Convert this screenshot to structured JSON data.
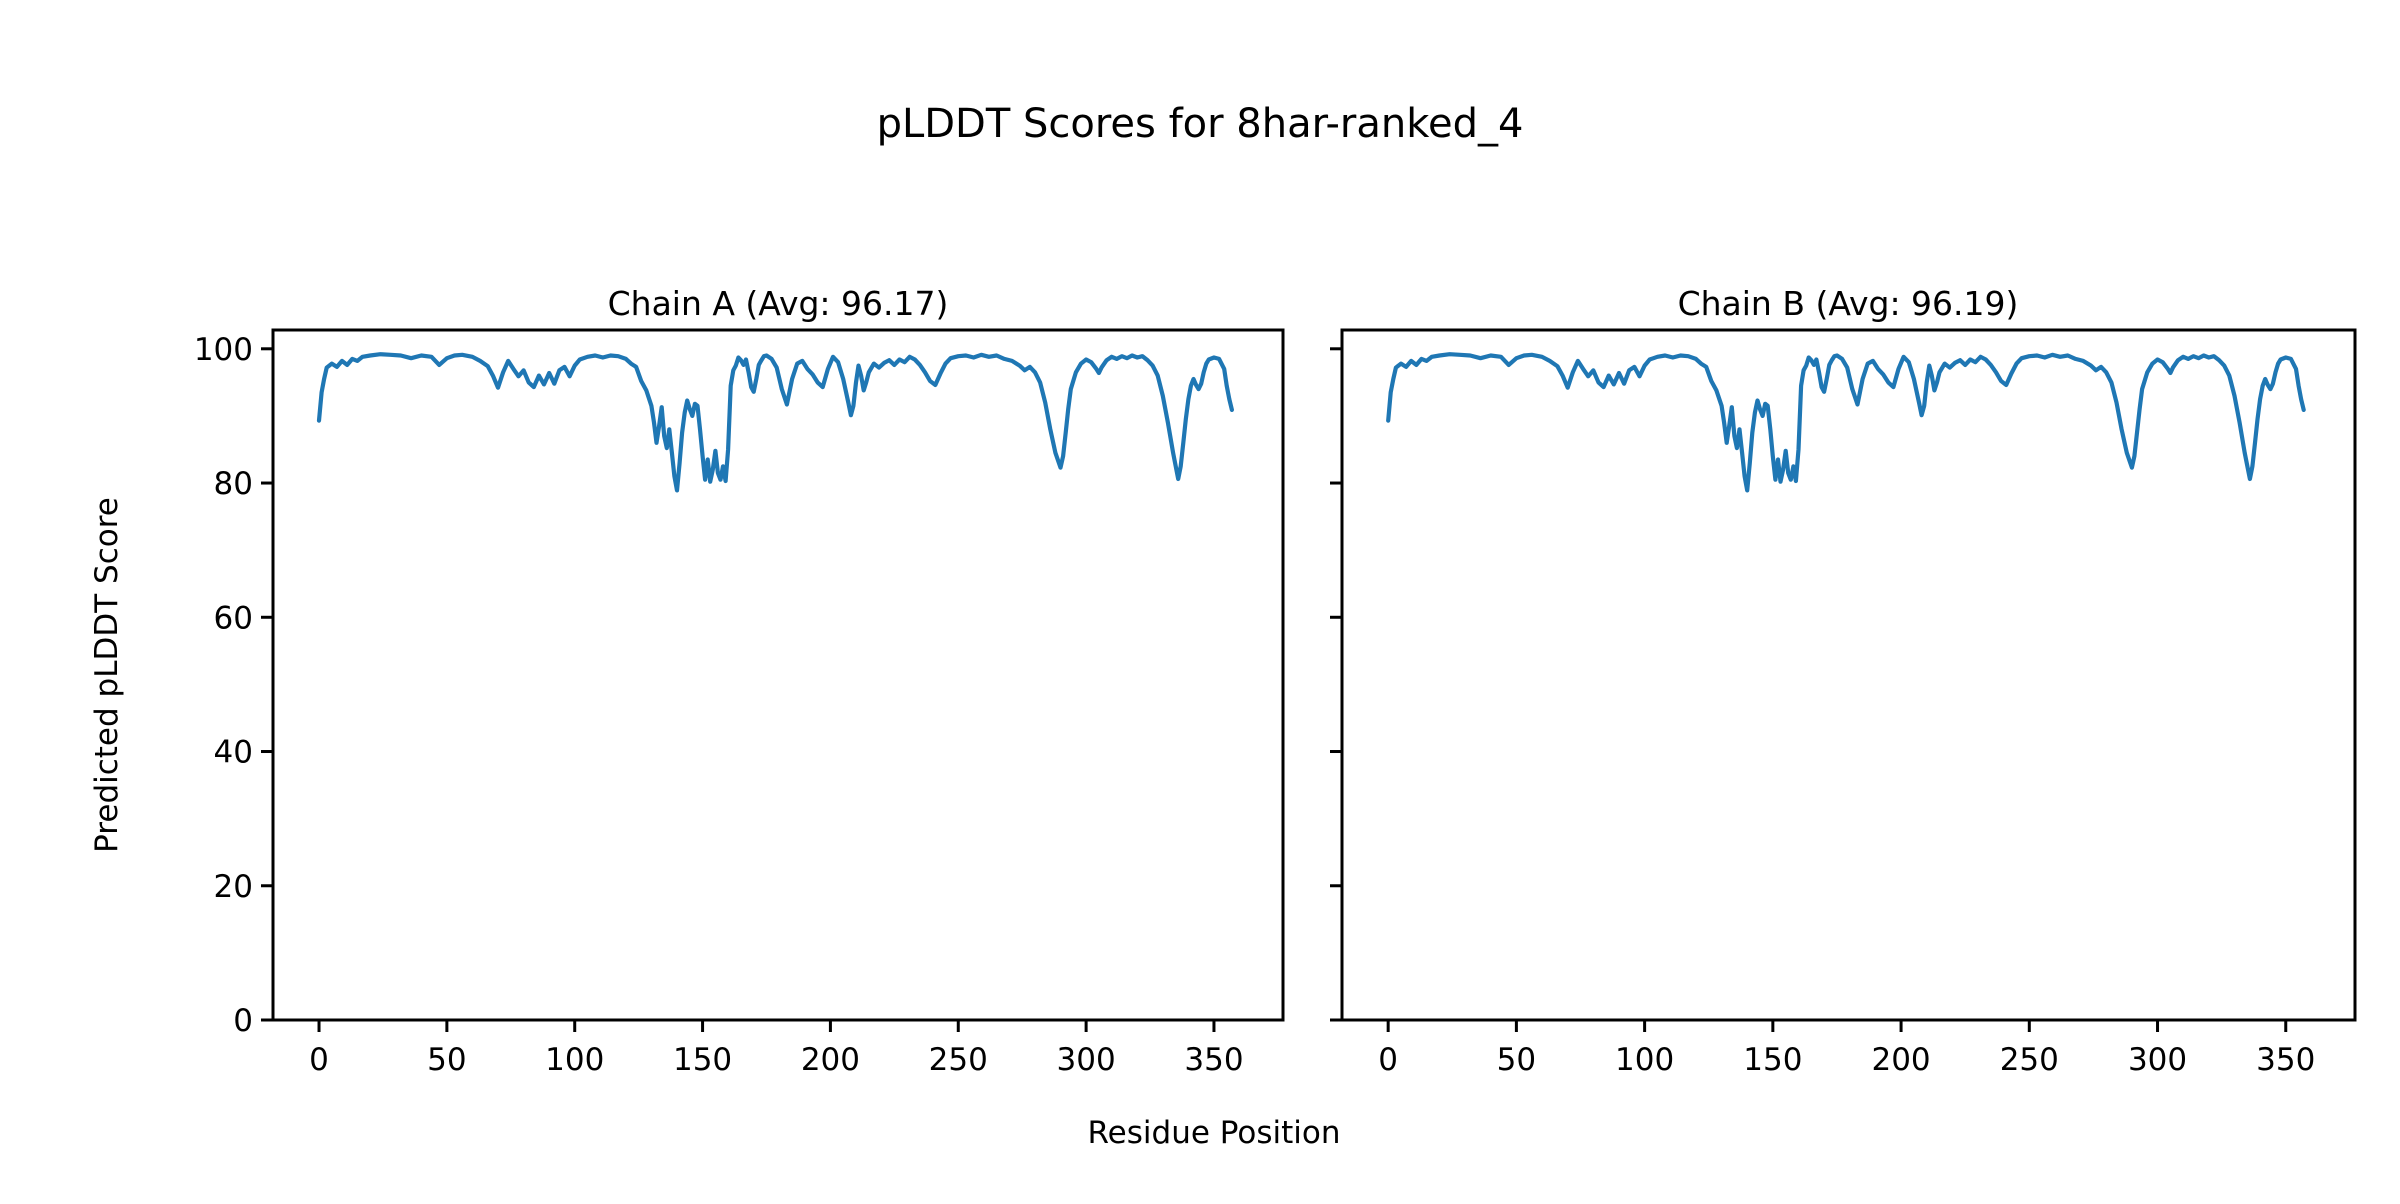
{
  "figure": {
    "title": "pLDDT Scores for 8har-ranked_4",
    "background_color": "#ffffff",
    "text_color": "#000000"
  },
  "shared_axes": {
    "xlabel": "Residue Position",
    "ylabel": "Predicted pLDDT Score",
    "x_ticks": [
      0,
      50,
      100,
      150,
      200,
      250,
      300,
      350
    ],
    "y_ticks": [
      0,
      20,
      40,
      60,
      80,
      100
    ],
    "xlim": [
      -18,
      377
    ],
    "ylim": [
      0,
      100
    ],
    "grid": false,
    "legend": "none"
  },
  "chart_data": [
    {
      "type": "line",
      "title": "Chain A (Avg: 96.17)",
      "series_name": "Chain A",
      "avg": 96.17,
      "line_color": "#1f77b4",
      "xlabel": "Residue Position",
      "ylabel": "Predicted pLDDT Score",
      "xlim": [
        -18,
        377
      ],
      "ylim": [
        0,
        100
      ],
      "x": [
        0,
        1,
        2,
        3,
        5,
        7,
        9,
        11,
        13,
        15,
        17,
        20,
        24,
        28,
        32,
        36,
        40,
        44,
        47,
        50,
        53,
        56,
        60,
        63,
        66,
        68,
        70,
        72,
        74,
        76,
        78,
        80,
        82,
        84,
        86,
        88,
        90,
        92,
        94,
        96,
        98,
        100,
        102,
        105,
        108,
        111,
        114,
        117,
        120,
        122,
        124,
        126,
        128,
        130,
        131,
        132,
        133,
        134,
        135,
        136,
        137,
        138,
        139,
        140,
        141,
        142,
        143,
        144,
        145,
        146,
        147,
        148,
        149,
        150,
        151,
        152,
        153,
        154,
        155,
        156,
        157,
        158,
        159,
        160,
        161,
        162,
        163,
        164,
        165,
        166,
        167,
        168,
        169,
        170,
        171,
        172,
        173,
        174,
        175,
        177,
        179,
        181,
        183,
        185,
        187,
        189,
        191,
        193,
        195,
        197,
        199,
        201,
        203,
        205,
        207,
        208,
        209,
        210,
        211,
        212,
        213,
        214,
        215,
        217,
        219,
        221,
        223,
        225,
        227,
        229,
        231,
        233,
        235,
        237,
        239,
        241,
        243,
        245,
        247,
        250,
        253,
        256,
        259,
        262,
        265,
        268,
        271,
        274,
        276,
        278,
        280,
        282,
        284,
        286,
        288,
        290,
        291,
        292,
        293,
        294,
        296,
        298,
        300,
        302,
        304,
        305,
        306,
        308,
        310,
        312,
        314,
        316,
        318,
        320,
        322,
        324,
        326,
        328,
        330,
        332,
        334,
        336,
        337,
        338,
        339,
        340,
        341,
        342,
        343,
        344,
        345,
        346,
        347,
        348,
        350,
        352,
        354,
        355,
        356,
        357
      ],
      "y": [
        89.3,
        93.5,
        95.5,
        97.2,
        97.8,
        97.3,
        98.2,
        97.6,
        98.5,
        98.2,
        98.8,
        99.0,
        99.2,
        99.1,
        99.0,
        98.6,
        99.0,
        98.8,
        97.6,
        98.6,
        99.0,
        99.1,
        98.8,
        98.2,
        97.4,
        96.0,
        94.2,
        96.5,
        98.2,
        97.0,
        95.9,
        96.8,
        95.0,
        94.3,
        96.0,
        94.7,
        96.4,
        94.8,
        96.8,
        97.3,
        95.9,
        97.5,
        98.4,
        98.8,
        99.0,
        98.7,
        99.0,
        98.9,
        98.5,
        97.8,
        97.3,
        95.2,
        93.8,
        91.5,
        89.0,
        86.0,
        88.5,
        91.3,
        87.0,
        85.2,
        88.0,
        84.5,
        81.0,
        78.9,
        83.0,
        87.5,
        90.5,
        92.3,
        91.0,
        90.0,
        91.8,
        91.5,
        88.0,
        84.0,
        80.5,
        83.5,
        80.2,
        82.0,
        84.8,
        81.5,
        80.5,
        82.5,
        80.3,
        85.0,
        94.5,
        96.8,
        97.5,
        98.7,
        98.3,
        97.6,
        98.4,
        96.5,
        94.3,
        93.6,
        95.5,
        97.6,
        98.3,
        98.9,
        99.0,
        98.5,
        97.2,
        94.0,
        91.7,
        95.5,
        97.8,
        98.2,
        97.0,
        96.2,
        95.0,
        94.3,
        97.0,
        98.8,
        98.0,
        95.5,
        92.0,
        90.1,
        91.5,
        95.0,
        97.5,
        96.0,
        93.8,
        95.0,
        96.5,
        97.8,
        97.2,
        97.9,
        98.3,
        97.6,
        98.4,
        98.0,
        98.8,
        98.4,
        97.6,
        96.5,
        95.2,
        94.6,
        96.3,
        97.8,
        98.6,
        98.9,
        99.0,
        98.7,
        99.1,
        98.8,
        99.0,
        98.5,
        98.2,
        97.5,
        96.8,
        97.3,
        96.5,
        95.0,
        92.0,
        88.0,
        84.5,
        82.3,
        84.0,
        87.5,
        91.0,
        94.0,
        96.5,
        97.8,
        98.4,
        98.0,
        97.0,
        96.4,
        97.2,
        98.3,
        98.8,
        98.5,
        98.9,
        98.6,
        99.0,
        98.7,
        98.9,
        98.3,
        97.5,
        96.0,
        93.0,
        89.0,
        84.5,
        80.6,
        82.5,
        86.0,
        89.5,
        92.5,
        94.5,
        95.5,
        94.6,
        94.0,
        94.8,
        96.5,
        97.8,
        98.4,
        98.7,
        98.5,
        97.0,
        94.5,
        92.5,
        90.9
      ]
    },
    {
      "type": "line",
      "title": "Chain B (Avg: 96.19)",
      "series_name": "Chain B",
      "avg": 96.19,
      "line_color": "#1f77b4",
      "xlabel": "Residue Position",
      "ylabel": "Predicted pLDDT Score",
      "xlim": [
        -18,
        377
      ],
      "ylim": [
        0,
        100
      ],
      "x": [
        0,
        1,
        2,
        3,
        5,
        7,
        9,
        11,
        13,
        15,
        17,
        20,
        24,
        28,
        32,
        36,
        40,
        44,
        47,
        50,
        53,
        56,
        60,
        63,
        66,
        68,
        70,
        72,
        74,
        76,
        78,
        80,
        82,
        84,
        86,
        88,
        90,
        92,
        94,
        96,
        98,
        100,
        102,
        105,
        108,
        111,
        114,
        117,
        120,
        122,
        124,
        126,
        128,
        130,
        131,
        132,
        133,
        134,
        135,
        136,
        137,
        138,
        139,
        140,
        141,
        142,
        143,
        144,
        145,
        146,
        147,
        148,
        149,
        150,
        151,
        152,
        153,
        154,
        155,
        156,
        157,
        158,
        159,
        160,
        161,
        162,
        163,
        164,
        165,
        166,
        167,
        168,
        169,
        170,
        171,
        172,
        173,
        174,
        175,
        177,
        179,
        181,
        183,
        185,
        187,
        189,
        191,
        193,
        195,
        197,
        199,
        201,
        203,
        205,
        207,
        208,
        209,
        210,
        211,
        212,
        213,
        214,
        215,
        217,
        219,
        221,
        223,
        225,
        227,
        229,
        231,
        233,
        235,
        237,
        239,
        241,
        243,
        245,
        247,
        250,
        253,
        256,
        259,
        262,
        265,
        268,
        271,
        274,
        276,
        278,
        280,
        282,
        284,
        286,
        288,
        290,
        291,
        292,
        293,
        294,
        296,
        298,
        300,
        302,
        304,
        305,
        306,
        308,
        310,
        312,
        314,
        316,
        318,
        320,
        322,
        324,
        326,
        328,
        330,
        332,
        334,
        336,
        337,
        338,
        339,
        340,
        341,
        342,
        343,
        344,
        345,
        346,
        347,
        348,
        350,
        352,
        354,
        355,
        356,
        357
      ],
      "y": [
        89.3,
        93.5,
        95.5,
        97.2,
        97.8,
        97.3,
        98.2,
        97.6,
        98.5,
        98.2,
        98.8,
        99.0,
        99.2,
        99.1,
        99.0,
        98.6,
        99.0,
        98.8,
        97.6,
        98.6,
        99.0,
        99.1,
        98.8,
        98.2,
        97.4,
        96.0,
        94.2,
        96.5,
        98.2,
        97.0,
        95.9,
        96.8,
        95.0,
        94.3,
        96.0,
        94.7,
        96.4,
        94.8,
        96.8,
        97.3,
        95.9,
        97.5,
        98.4,
        98.8,
        99.0,
        98.7,
        99.0,
        98.9,
        98.5,
        97.8,
        97.3,
        95.2,
        93.8,
        91.5,
        89.0,
        86.0,
        88.5,
        91.3,
        87.0,
        85.2,
        88.0,
        84.5,
        81.0,
        78.9,
        83.0,
        87.5,
        90.5,
        92.3,
        91.0,
        90.0,
        91.8,
        91.5,
        88.0,
        84.0,
        80.5,
        83.5,
        80.2,
        82.0,
        84.8,
        81.5,
        80.5,
        82.5,
        80.3,
        85.0,
        94.5,
        96.8,
        97.5,
        98.7,
        98.3,
        97.6,
        98.4,
        96.5,
        94.3,
        93.6,
        95.5,
        97.6,
        98.3,
        98.9,
        99.0,
        98.5,
        97.2,
        94.0,
        91.7,
        95.5,
        97.8,
        98.2,
        97.0,
        96.2,
        95.0,
        94.3,
        97.0,
        98.8,
        98.0,
        95.5,
        92.0,
        90.1,
        91.5,
        95.0,
        97.5,
        96.0,
        93.8,
        95.0,
        96.5,
        97.8,
        97.2,
        97.9,
        98.3,
        97.6,
        98.4,
        98.0,
        98.8,
        98.4,
        97.6,
        96.5,
        95.2,
        94.6,
        96.3,
        97.8,
        98.6,
        98.9,
        99.0,
        98.7,
        99.1,
        98.8,
        99.0,
        98.5,
        98.2,
        97.5,
        96.8,
        97.3,
        96.5,
        95.0,
        92.0,
        88.0,
        84.5,
        82.3,
        84.0,
        87.5,
        91.0,
        94.0,
        96.5,
        97.8,
        98.4,
        98.0,
        97.0,
        96.4,
        97.2,
        98.3,
        98.8,
        98.5,
        98.9,
        98.6,
        99.0,
        98.7,
        98.9,
        98.3,
        97.5,
        96.0,
        93.0,
        89.0,
        84.5,
        80.6,
        82.5,
        86.0,
        89.5,
        92.5,
        94.5,
        95.5,
        94.6,
        94.0,
        94.8,
        96.5,
        97.8,
        98.4,
        98.7,
        98.5,
        97.0,
        94.5,
        92.5,
        90.9
      ]
    }
  ]
}
